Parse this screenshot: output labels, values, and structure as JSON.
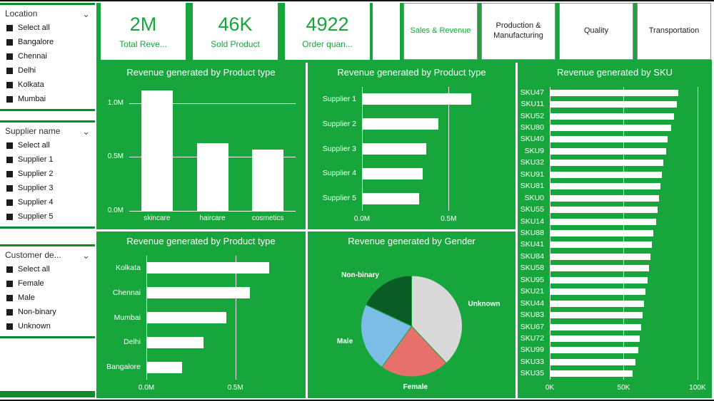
{
  "theme": {
    "green": "#17a63c",
    "dark_green": "#0e8a30",
    "bar_color": "#ffffff"
  },
  "slicers": [
    {
      "title": "Location",
      "items": [
        "Select all",
        "Bangalore",
        "Chennai",
        "Delhi",
        "Kolkata",
        "Mumbai"
      ]
    },
    {
      "title": "Supplier name",
      "items": [
        "Select all",
        "Supplier 1",
        "Supplier 2",
        "Supplier 3",
        "Supplier 4",
        "Supplier 5"
      ]
    },
    {
      "title": "Customer de...",
      "items": [
        "Select all",
        "Female",
        "Male",
        "Non-binary",
        "Unknown"
      ]
    }
  ],
  "kpis": [
    {
      "value": "2M",
      "label": "Total Reve..."
    },
    {
      "value": "46K",
      "label": "Sold Product"
    },
    {
      "value": "4922",
      "label": "Order quan..."
    }
  ],
  "nav": [
    {
      "label": "Sales & Revenue",
      "active": true
    },
    {
      "label": "Production & Manufacturing",
      "active": false
    },
    {
      "label": "Quality",
      "active": false
    },
    {
      "label": "Transportation",
      "active": false
    }
  ],
  "chart_data": [
    {
      "type": "bar",
      "title": "Revenue generated by Product type",
      "categories": [
        "skincare",
        "haircare",
        "cosmetics"
      ],
      "values": [
        1.12,
        0.63,
        0.57
      ],
      "unit": "M",
      "ylim": [
        0,
        1.15
      ],
      "yticks": [
        {
          "v": 0,
          "label": "0.0M"
        },
        {
          "v": 0.5,
          "label": "0.5M"
        },
        {
          "v": 1,
          "label": "1.0M"
        }
      ],
      "grid": true,
      "legend": false
    },
    {
      "type": "hbar",
      "title": "Revenue generated by Product type",
      "categories": [
        "Supplier 1",
        "Supplier 2",
        "Supplier 3",
        "Supplier 4",
        "Supplier 5"
      ],
      "values": [
        0.63,
        0.44,
        0.37,
        0.35,
        0.33
      ],
      "unit": "M",
      "xlim": [
        0,
        0.82
      ],
      "xticks": [
        {
          "v": 0,
          "label": "0.0M"
        },
        {
          "v": 0.5,
          "label": "0.5M"
        }
      ],
      "grid": true,
      "legend": false
    },
    {
      "type": "hbar",
      "title": "Revenue generated by SKU",
      "categories": [
        "SKU47",
        "SKU11",
        "SKU52",
        "SKU80",
        "SKU40",
        "SKU9",
        "SKU32",
        "SKU91",
        "SKU81",
        "SKU0",
        "SKU55",
        "SKU14",
        "SKU88",
        "SKU41",
        "SKU84",
        "SKU58",
        "SKU95",
        "SKU21",
        "SKU44",
        "SKU83",
        "SKU67",
        "SKU72",
        "SKU99",
        "SKU33",
        "SKU35"
      ],
      "values": [
        87,
        86,
        84,
        82,
        80,
        79,
        77,
        76,
        75,
        74,
        73,
        72,
        70,
        69,
        68,
        67,
        66,
        65,
        64,
        63,
        62,
        61,
        60,
        58,
        56
      ],
      "unit": "K",
      "xlim": [
        0,
        102
      ],
      "xticks": [
        {
          "v": 0,
          "label": "0K"
        },
        {
          "v": 50,
          "label": "50K"
        },
        {
          "v": 100,
          "label": "100K"
        }
      ],
      "grid": true,
      "legend": false
    },
    {
      "type": "hbar",
      "title": "Revenue generated by Product type",
      "categories": [
        "Kolkata",
        "Chennai",
        "Mumbai",
        "Delhi",
        "Bangalore"
      ],
      "values": [
        0.69,
        0.58,
        0.45,
        0.32,
        0.2
      ],
      "unit": "M",
      "xlim": [
        0,
        0.83
      ],
      "xticks": [
        {
          "v": 0,
          "label": "0.0M"
        },
        {
          "v": 0.5,
          "label": "0.5M"
        }
      ],
      "grid": true,
      "legend": false
    },
    {
      "type": "pie",
      "title": "Revenue generated by Gender",
      "slices": [
        {
          "label": "Unknown",
          "pct": 38,
          "color": "#d9d9d9"
        },
        {
          "label": "Female",
          "pct": 22,
          "color": "#e8706c"
        },
        {
          "label": "Male",
          "pct": 22,
          "color": "#7cbde8"
        },
        {
          "label": "Non-binary",
          "pct": 18,
          "color": "#0a5c26"
        }
      ],
      "legend": "outside-labels"
    }
  ]
}
